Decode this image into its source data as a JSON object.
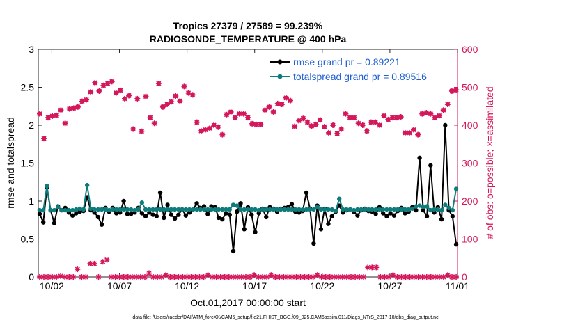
{
  "chart_data": {
    "type": "line",
    "title_line1": "Tropics 27379 / 27589 = 99.239%",
    "title_line2": "RADIOSONDE_TEMPERATURE @ 400 hPa",
    "xlabel": "Oct.01,2017 00:00:00 start",
    "ylabel_left": "rmse and totalspread",
    "ylabel_right": "# of obs: o=possible; ×=assimilated",
    "xlim": [
      0,
      31
    ],
    "ylim_left": [
      0,
      3
    ],
    "ylim_right": [
      0,
      600
    ],
    "x_ticks": [
      {
        "x": 1,
        "label": "10/02"
      },
      {
        "x": 6,
        "label": "10/07"
      },
      {
        "x": 11,
        "label": "10/12"
      },
      {
        "x": 16,
        "label": "10/17"
      },
      {
        "x": 21,
        "label": "10/22"
      },
      {
        "x": 26,
        "label": "10/27"
      },
      {
        "x": 31,
        "label": "11/01"
      }
    ],
    "y_ticks_left": [
      {
        "v": 0,
        "label": "0"
      },
      {
        "v": 0.5,
        "label": "0.5"
      },
      {
        "v": 1,
        "label": "1"
      },
      {
        "v": 1.5,
        "label": "1.5"
      },
      {
        "v": 2,
        "label": "2"
      },
      {
        "v": 2.5,
        "label": "2.5"
      },
      {
        "v": 3,
        "label": "3"
      }
    ],
    "y_ticks_right": [
      {
        "v": 0,
        "label": "0"
      },
      {
        "v": 100,
        "label": "100"
      },
      {
        "v": 200,
        "label": "200"
      },
      {
        "v": 300,
        "label": "300"
      },
      {
        "v": 400,
        "label": "400"
      },
      {
        "v": 500,
        "label": "500"
      },
      {
        "v": 600,
        "label": "600"
      }
    ],
    "colors": {
      "rmse": "#000000",
      "totalspread": "#0f7c7c",
      "obs": "#d4175a",
      "legend_text": "#1f5fd1"
    },
    "series": [
      {
        "name": "rmse grand pr = 0.89221",
        "key": "rmse",
        "values": [
          0.83,
          0.72,
          1.18,
          0.88,
          0.71,
          0.93,
          0.88,
          0.91,
          0.85,
          0.81,
          0.84,
          0.86,
          0.87,
          1.05,
          0.88,
          0.85,
          0.79,
          0.69,
          0.91,
          0.86,
          0.91,
          0.84,
          0.85,
          1.0,
          0.83,
          0.83,
          0.85,
          0.91,
          0.84,
          0.8,
          0.85,
          0.82,
          0.8,
          1.11,
          0.78,
          0.95,
          0.82,
          0.77,
          0.82,
          0.89,
          0.81,
          0.85,
          0.89,
          0.97,
          0.91,
          0.93,
          0.83,
          0.93,
          0.92,
          0.78,
          0.76,
          0.84,
          0.82,
          0.34,
          0.86,
          0.97,
          0.63,
          0.92,
          0.82,
          0.59,
          0.84,
          0.9,
          0.79,
          0.92,
          0.9,
          0.86,
          0.9,
          0.91,
          0.92,
          0.96,
          0.86,
          0.85,
          0.87,
          1.11,
          0.9,
          0.44,
          0.94,
          0.63,
          0.9,
          0.7,
          0.8,
          0.86,
          0.94,
          0.85,
          0.88,
          0.89,
          0.86,
          0.81,
          0.88,
          0.9,
          0.87,
          0.86,
          0.83,
          0.92,
          0.84,
          0.8,
          0.84,
          0.81,
          0.87,
          0.91,
          0.84,
          0.86,
          0.92,
          0.88,
          1.57,
          0.88,
          0.8,
          1.47,
          0.85,
          0.92,
          0.76,
          2.0,
          0.88,
          0.8,
          0.43
        ]
      },
      {
        "name": "totalspread grand pr = 0.89516",
        "key": "totalspread",
        "values": [
          0.88,
          0.88,
          1.2,
          0.88,
          0.88,
          0.92,
          0.88,
          0.88,
          0.88,
          0.88,
          0.89,
          0.9,
          0.89,
          1.21,
          0.9,
          0.89,
          0.89,
          0.89,
          0.89,
          0.88,
          0.89,
          0.89,
          0.89,
          0.89,
          0.89,
          0.89,
          0.88,
          0.89,
          0.98,
          0.89,
          0.89,
          0.89,
          0.89,
          0.89,
          0.89,
          0.89,
          0.89,
          0.89,
          0.89,
          0.89,
          0.89,
          0.89,
          0.89,
          0.89,
          0.89,
          0.89,
          0.89,
          0.89,
          0.89,
          0.89,
          0.89,
          0.89,
          0.89,
          0.95,
          0.94,
          0.89,
          0.89,
          0.89,
          0.89,
          0.89,
          0.88,
          0.89,
          0.89,
          0.89,
          0.89,
          0.89,
          0.89,
          0.89,
          0.89,
          0.89,
          0.89,
          0.89,
          0.89,
          0.89,
          0.89,
          0.89,
          0.92,
          0.89,
          0.89,
          0.89,
          0.89,
          0.87,
          1.03,
          0.89,
          0.89,
          0.89,
          0.88,
          0.89,
          0.89,
          0.89,
          0.89,
          0.89,
          0.89,
          0.89,
          0.89,
          0.89,
          0.89,
          0.89,
          0.89,
          0.89,
          0.89,
          0.89,
          0.9,
          0.93,
          0.94,
          0.92,
          0.93,
          0.88,
          0.89,
          0.89,
          0.88,
          0.95,
          0.91,
          0.88,
          1.16
        ]
      },
      {
        "name": "obs possible",
        "key": "obs_possible",
        "values": [
          430,
          365,
          420,
          424,
          426,
          440,
          405,
          443,
          445,
          448,
          463,
          467,
          488,
          512,
          490,
          505,
          510,
          515,
          485,
          492,
          470,
          478,
          390,
          470,
          384,
          476,
          420,
          405,
          510,
          448,
          455,
          462,
          477,
          464,
          502,
          485,
          480,
          408,
          385,
          388,
          392,
          400,
          395,
          375,
          428,
          435,
          420,
          430,
          430,
          420,
          404,
          402,
          402,
          440,
          448,
          435,
          457,
          455,
          472,
          465,
          397,
          412,
          418,
          408,
          398,
          402,
          414,
          396,
          380,
          400,
          378,
          390,
          430,
          420,
          420,
          405,
          400,
          385,
          408,
          408,
          400,
          425,
          415,
          420,
          420,
          422,
          380,
          380,
          388,
          375,
          430,
          433,
          430,
          420,
          425,
          440,
          455,
          490,
          493
        ]
      },
      {
        "name": "obs assimilated",
        "key": "obs_assim",
        "values": [
          430,
          365,
          420,
          424,
          426,
          440,
          405,
          443,
          445,
          448,
          463,
          467,
          488,
          512,
          490,
          505,
          510,
          515,
          485,
          492,
          470,
          478,
          390,
          470,
          384,
          476,
          420,
          405,
          510,
          448,
          455,
          462,
          477,
          464,
          502,
          485,
          480,
          408,
          385,
          388,
          392,
          400,
          395,
          375,
          428,
          435,
          420,
          430,
          430,
          420,
          404,
          402,
          402,
          440,
          448,
          435,
          457,
          455,
          472,
          465,
          397,
          412,
          418,
          408,
          398,
          402,
          414,
          396,
          380,
          400,
          378,
          390,
          430,
          420,
          420,
          405,
          400,
          385,
          408,
          408,
          400,
          425,
          415,
          420,
          420,
          422,
          380,
          380,
          388,
          375,
          430,
          433,
          430,
          420,
          425,
          440,
          455,
          490,
          493
        ]
      },
      {
        "name": "obs low",
        "key": "obs_low",
        "values": [
          0,
          0,
          0,
          0,
          0,
          2,
          0,
          0,
          0,
          20,
          0,
          0,
          35,
          35,
          0,
          40,
          45,
          0,
          0,
          0,
          0,
          0,
          0,
          0,
          0,
          0,
          10,
          0,
          0,
          0,
          5,
          0,
          0,
          0,
          0,
          0,
          0,
          0,
          0,
          0,
          5,
          0,
          0,
          0,
          0,
          0,
          0,
          0,
          0,
          0,
          0,
          5,
          0,
          0,
          0,
          5,
          0,
          0,
          0,
          0,
          0,
          0,
          0,
          0,
          0,
          0,
          5,
          0,
          0,
          0,
          0,
          0,
          0,
          0,
          0,
          0,
          0,
          0,
          25,
          25,
          25,
          0,
          0,
          0,
          5,
          0,
          0,
          0,
          0,
          0,
          0,
          0,
          0,
          0,
          0,
          0,
          0,
          5,
          0,
          0
        ]
      }
    ],
    "legend": {
      "position": "top-right",
      "entries": [
        "rmse grand pr = 0.89221",
        "totalspread grand pr = 0.89516"
      ]
    }
  },
  "footer": "data file: /Users/raeder/DAI/ATM_forcXX/CAM6_setup/f.e21.FHIST_BGC.f09_025.CAM6assim.011/Diags_NTrS_2017-10/obs_diag_output.nc"
}
